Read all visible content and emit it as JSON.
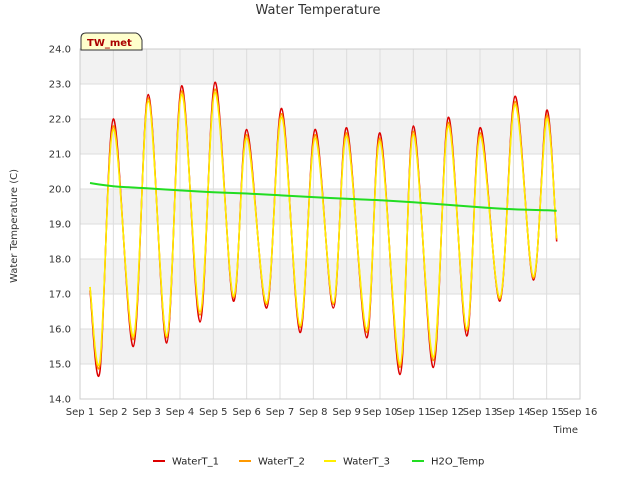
{
  "chart_data": {
    "type": "line",
    "title": "Water Temperature",
    "xlabel": "Time",
    "ylabel": "Water Temperature (C)",
    "station_label": "TW_met",
    "xlim": [
      1,
      16
    ],
    "ylim": [
      14.0,
      24.0
    ],
    "x_ticks": [
      {
        "v": 1,
        "label": "Sep 1"
      },
      {
        "v": 2,
        "label": "Sep 2"
      },
      {
        "v": 3,
        "label": "Sep 3"
      },
      {
        "v": 4,
        "label": "Sep 4"
      },
      {
        "v": 5,
        "label": "Sep 5"
      },
      {
        "v": 6,
        "label": "Sep 6"
      },
      {
        "v": 7,
        "label": "Sep 7"
      },
      {
        "v": 8,
        "label": "Sep 8"
      },
      {
        "v": 9,
        "label": "Sep 9"
      },
      {
        "v": 10,
        "label": "Sep 10"
      },
      {
        "v": 11,
        "label": "Sep 11"
      },
      {
        "v": 12,
        "label": "Sep 12"
      },
      {
        "v": 13,
        "label": "Sep 13"
      },
      {
        "v": 14,
        "label": "Sep 14"
      },
      {
        "v": 15,
        "label": "Sep 15"
      },
      {
        "v": 16,
        "label": "Sep 16"
      }
    ],
    "y_ticks": [
      {
        "v": 14.0,
        "label": "14.0"
      },
      {
        "v": 15.0,
        "label": "15.0"
      },
      {
        "v": 16.0,
        "label": "16.0"
      },
      {
        "v": 17.0,
        "label": "17.0"
      },
      {
        "v": 18.0,
        "label": "18.0"
      },
      {
        "v": 19.0,
        "label": "19.0"
      },
      {
        "v": 20.0,
        "label": "20.0"
      },
      {
        "v": 21.0,
        "label": "21.0"
      },
      {
        "v": 22.0,
        "label": "22.0"
      },
      {
        "v": 23.0,
        "label": "23.0"
      },
      {
        "v": 24.0,
        "label": "24.0"
      }
    ],
    "grid": true,
    "legend_position": "bottom",
    "series": [
      {
        "name": "WaterT_1",
        "color": "#dd0000",
        "x": [
          1.3,
          1.6,
          2.0,
          2.6,
          3.05,
          3.6,
          4.05,
          4.6,
          5.05,
          5.6,
          6.0,
          6.6,
          7.05,
          7.6,
          8.05,
          8.6,
          9.0,
          9.6,
          10.0,
          10.6,
          11.0,
          11.6,
          12.05,
          12.6,
          13.0,
          13.6,
          14.05,
          14.6,
          15.0,
          15.3
        ],
        "y": [
          17.1,
          14.8,
          22.0,
          15.5,
          22.7,
          15.6,
          22.95,
          16.2,
          23.05,
          16.8,
          21.7,
          16.6,
          22.3,
          15.9,
          21.7,
          16.6,
          21.75,
          15.75,
          21.6,
          14.7,
          21.8,
          14.9,
          22.05,
          15.8,
          21.75,
          16.8,
          22.65,
          17.4,
          22.25,
          18.5
        ]
      },
      {
        "name": "WaterT_2",
        "color": "#ff9900",
        "x": [
          1.3,
          1.6,
          2.0,
          2.6,
          3.05,
          3.6,
          4.05,
          4.6,
          5.05,
          5.6,
          6.0,
          6.6,
          7.05,
          7.6,
          8.05,
          8.6,
          9.0,
          9.6,
          10.0,
          10.6,
          11.0,
          11.6,
          12.05,
          12.6,
          13.0,
          13.6,
          14.05,
          14.6,
          15.0,
          15.3
        ],
        "y": [
          17.2,
          15.0,
          21.8,
          15.7,
          22.6,
          15.75,
          22.8,
          16.4,
          22.85,
          16.9,
          21.55,
          16.7,
          22.15,
          16.05,
          21.55,
          16.7,
          21.6,
          15.9,
          21.45,
          14.9,
          21.65,
          15.1,
          21.9,
          15.95,
          21.6,
          16.85,
          22.5,
          17.45,
          22.1,
          18.55
        ]
      },
      {
        "name": "WaterT_3",
        "color": "#ffee00",
        "x": [
          1.3,
          1.6,
          2.0,
          2.6,
          3.05,
          3.6,
          4.05,
          4.6,
          5.05,
          5.6,
          6.0,
          6.6,
          7.05,
          7.6,
          8.05,
          8.6,
          9.0,
          9.6,
          10.0,
          10.6,
          11.0,
          11.6,
          12.05,
          12.6,
          13.0,
          13.6,
          14.05,
          14.6,
          15.0,
          15.3
        ],
        "y": [
          17.2,
          15.1,
          21.7,
          15.8,
          22.5,
          15.8,
          22.7,
          16.5,
          22.75,
          16.95,
          21.45,
          16.75,
          22.05,
          16.1,
          21.45,
          16.75,
          21.5,
          16.0,
          21.35,
          15.0,
          21.55,
          15.2,
          21.8,
          16.0,
          21.5,
          16.9,
          22.4,
          17.5,
          22.0,
          18.6
        ]
      },
      {
        "name": "H2O_Temp",
        "color": "#22dd22",
        "x": [
          1.3,
          2.0,
          3.0,
          4.0,
          5.0,
          6.0,
          7.0,
          8.0,
          9.0,
          10.0,
          11.0,
          12.0,
          13.0,
          14.0,
          15.0,
          15.3
        ],
        "y": [
          20.17,
          20.08,
          20.02,
          19.96,
          19.91,
          19.87,
          19.82,
          19.77,
          19.72,
          19.68,
          19.62,
          19.55,
          19.48,
          19.42,
          19.39,
          19.38
        ]
      }
    ]
  }
}
